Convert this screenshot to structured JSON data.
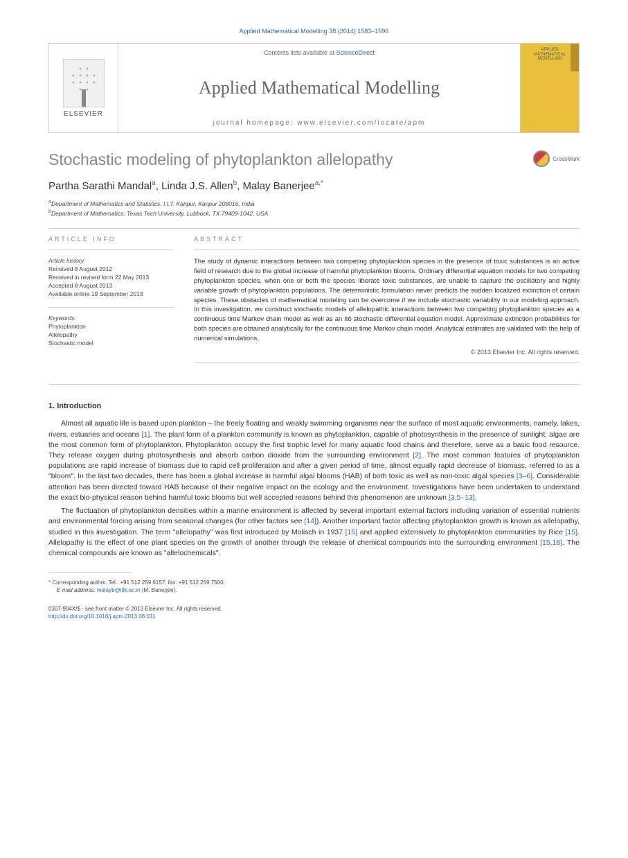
{
  "citation": "Applied Mathematical Modelling 38 (2014) 1583–1596",
  "header": {
    "contents_prefix": "Contents lists available at ",
    "contents_link": "ScienceDirect",
    "journal_name": "Applied Mathematical Modelling",
    "homepage": "journal homepage: www.elsevier.com/locate/apm",
    "elsevier_label": "ELSEVIER",
    "cover_title": "APPLIED MATHEMATICAL MODELLING"
  },
  "article": {
    "title": "Stochastic modeling of phytoplankton allelopathy",
    "crossmark": "CrossMark",
    "authors_html": "Partha Sarathi Mandal",
    "author1": "Partha Sarathi Mandal",
    "author1_sup": "a",
    "author2": "Linda J.S. Allen",
    "author2_sup": "b",
    "author3": "Malay Banerjee",
    "author3_sup": "a,",
    "corr_mark": "*",
    "aff_a": "Department of Mathematics and Statistics, I.I.T. Kanpur, Kanpur 208016, India",
    "aff_b": "Department of Mathematics, Texas Tech University, Lubbock, TX 79409-1042, USA"
  },
  "info": {
    "label": "ARTICLE INFO",
    "history_label": "Article history:",
    "received": "Received 8 August 2012",
    "revised": "Received in revised form 22 May 2013",
    "accepted": "Accepted 8 August 2013",
    "online": "Available online 19 September 2013",
    "keywords_label": "Keywords:",
    "kw1": "Phytoplankton",
    "kw2": "Allelopathy",
    "kw3": "Stochastic model"
  },
  "abstract": {
    "label": "ABSTRACT",
    "text": "The study of dynamic interactions between two competing phytoplankton species in the presence of toxic substances is an active field of research due to the global increase of harmful phytoplankton blooms. Ordinary differential equation models for two competing phytoplankton species, when one or both the species liberate toxic substances, are unable to capture the oscillatory and highly variable growth of phytoplankton populations. The deterministic formulation never predicts the sudden localized extinction of certain species. These obstacles of mathematical modeling can be overcome if we include stochastic variability in our modeling approach. In this investigation, we construct stochastic models of allelopathic interactions between two competing phytoplankton species as a continuous time Markov chain model as well as an Itô stochastic differential equation model. Approximate extinction probabilities for both species are obtained analytically for the continuous time Markov chain model. Analytical estimates are validated with the help of numerical simulations.",
    "copyright": "© 2013 Elsevier Inc. All rights reserved."
  },
  "section1": {
    "head": "1. Introduction",
    "p1_a": "Almost all aquatic life is based upon plankton – the freely floating and weakly swimming organisms near the surface of most aquatic environments, namely, lakes, rivers, estuaries and oceans ",
    "p1_ref1": "[1]",
    "p1_b": ". The plant form of a plankton community is known as phytoplankton, capable of photosynthesis in the presence of sunlight; algae are the most common form of phytoplankton. Phytoplankton occupy the first trophic level for many aquatic food chains and therefore, serve as a basic food resource. They release oxygen during photosynthesis and absorb carbon dioxide from the surrounding environment ",
    "p1_ref2": "[2]",
    "p1_c": ". The most common features of phytoplankton populations are rapid increase of biomass due to rapid cell proliferation and after a given period of time, almost equally rapid decrease of biomass, referred to as a \"bloom\". In the last two decades, there has been a global increase in harmful algal blooms (HAB) of both toxic as well as non-toxic algal species ",
    "p1_ref3": "[3–6]",
    "p1_d": ". Considerable attention has been directed toward HAB because of their negative impact on the ecology and the environment. Investigations have been undertaken to understand the exact bio-physical reason behind harmful toxic blooms but well accepted reasons behind this phenomenon are unknown ",
    "p1_ref4": "[3,5–13]",
    "p1_e": ".",
    "p2_a": "The fluctuation of phytoplankton densities within a marine environment is affected by several important external factors including variation of essential nutrients and environmental forcing arising from seasonal changes (for other factors see ",
    "p2_ref1": "[14]",
    "p2_b": "). Another important factor affecting phytoplankton growth is known as allelopathy, studied in this investigation. The term \"allelopathy\" was first introduced by Molisch in 1937 ",
    "p2_ref2": "[15]",
    "p2_c": " and applied extensively to phytoplankton communities by Rice ",
    "p2_ref3": "[15]",
    "p2_d": ". Allelopathy is the effect of one plant species on the growth of another through the release of chemical compounds into the surrounding environment ",
    "p2_ref4": "[15,16]",
    "p2_e": ". The chemical compounds are known as \"allelochemicals\"."
  },
  "footnote": {
    "corr": "Corresponding author. Tel.: +91 512 259 6157; fax: +91 512 259 7500.",
    "email_label": "E-mail address: ",
    "email": "malayb@iitk.ac.in",
    "email_name": " (M. Banerjee)."
  },
  "bottom": {
    "issn": "0307-904X/$ - see front matter © 2013 Elsevier Inc. All rights reserved.",
    "doi": "http://dx.doi.org/10.1016/j.apm.2013.08.031"
  }
}
